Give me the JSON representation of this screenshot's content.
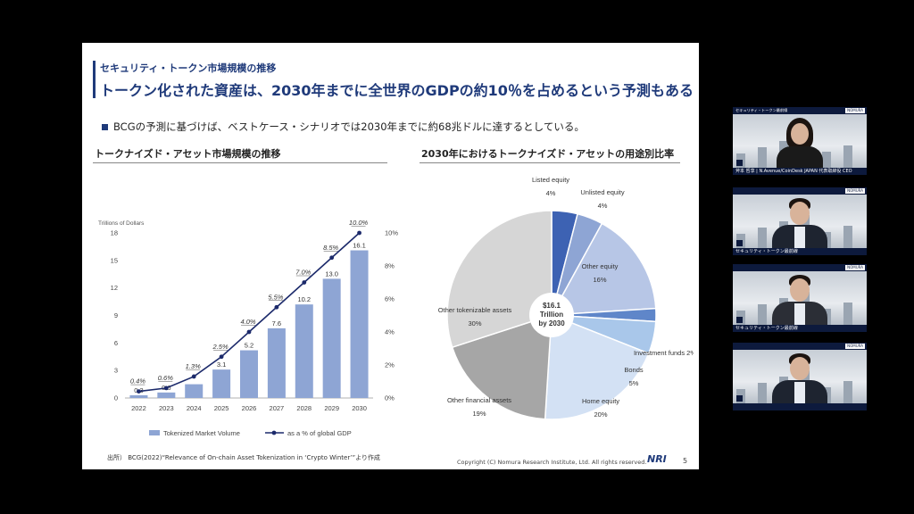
{
  "slide": {
    "subtitle": "セキュリティ・トークン市場規模の推移",
    "title": "トークン化された資産は、2030年までに全世界のGDPの約10％を占めるという予測もある",
    "bullet": "BCGの予測に基づけば、ベストケース・シナリオでは2030年までに約68兆ドルに達するとしている。",
    "left_section_title": "トークナイズド・アセット市場規模の推移",
    "right_section_title": "2030年におけるトークナイズド・アセットの用途別比率",
    "source": "出所）  BCG(2022)“Relevance of On-chain Asset Tokenization in ‘Crypto Winter’”より作成",
    "copyright": "Copyright (C)  Nomura Research Institute, Ltd. All rights reserved.",
    "logo": "NRI",
    "page_number": "5"
  },
  "chart_data": [
    {
      "type": "bar",
      "ylabel": "Trillions of Dollars",
      "ylim": [
        0,
        18
      ],
      "yticks": [
        "0",
        "3",
        "6",
        "9",
        "12",
        "15",
        "18"
      ],
      "y2ticks": [
        "0%",
        "2%",
        "4%",
        "6%",
        "8%",
        "10%"
      ],
      "y2lim": [
        0,
        10
      ],
      "categories": [
        "2022",
        "2023",
        "2024",
        "2025",
        "2026",
        "2027",
        "2028",
        "2029",
        "2030"
      ],
      "series": [
        {
          "name": "Tokenized Market Volume",
          "kind": "bar",
          "color": "#8ea5d4",
          "values": [
            0.3,
            0.6,
            1.5,
            3.1,
            5.2,
            7.6,
            10.2,
            13.0,
            16.1
          ],
          "labels": [
            "0.3",
            "0.6",
            "",
            "3.1",
            "5.2",
            "7.6",
            "10.2",
            "13.0",
            "16.1"
          ]
        },
        {
          "name": "as a % of global GDP",
          "kind": "line",
          "color": "#1c2a6b",
          "values": [
            0.4,
            0.6,
            1.3,
            2.5,
            4.0,
            5.5,
            7.0,
            8.5,
            10.0
          ],
          "labels": [
            "0.4%",
            "0.6%",
            "1.3%",
            "2.5%",
            "4.0%",
            "5.5%",
            "7.0%",
            "8.5%",
            "10.0%"
          ]
        }
      ]
    },
    {
      "type": "pie",
      "center_label": [
        "$16.1",
        "Trillion",
        "by 2030"
      ],
      "slices": [
        {
          "label": "Listed equity",
          "value": 4,
          "pct": "4%",
          "color": "#3d62b3"
        },
        {
          "label": "Unlisted equity",
          "value": 4,
          "pct": "4%",
          "color": "#8ea5d4"
        },
        {
          "label": "Other equity",
          "value": 16,
          "pct": "16%",
          "color": "#b7c6e6"
        },
        {
          "label": "Investment funds",
          "value": 2,
          "pct": "2%",
          "color": "#5f86c9"
        },
        {
          "label": "Bonds",
          "value": 5,
          "pct": "5%",
          "color": "#a9c7ea"
        },
        {
          "label": "Home equity",
          "value": 20,
          "pct": "20%",
          "color": "#d3e1f4"
        },
        {
          "label": "Other financial assets",
          "value": 19,
          "pct": "19%",
          "color": "#a6a6a6"
        },
        {
          "label": "Other tokenizable assets",
          "value": 30,
          "pct": "30%",
          "color": "#d6d6d6"
        }
      ]
    }
  ],
  "panels": [
    {
      "band": "セキュリティ・トークン最前線",
      "tag": "NOMURA",
      "caption": "",
      "strip": "斧本 哲享 | N.Avenue/CoinDesk JAPAN 代表取締役 CEO",
      "kind": "woman"
    },
    {
      "band": "",
      "tag": "NOMURA",
      "caption": "",
      "strip": "セキュリティ・トークン最前線",
      "kind": "man1"
    },
    {
      "band": "",
      "tag": "NOMURA",
      "caption": "",
      "strip": "セキュリティ・トークン最前線",
      "kind": "man2"
    },
    {
      "band": "",
      "tag": "NOMURA",
      "caption": "",
      "strip": "",
      "kind": "man3"
    }
  ]
}
